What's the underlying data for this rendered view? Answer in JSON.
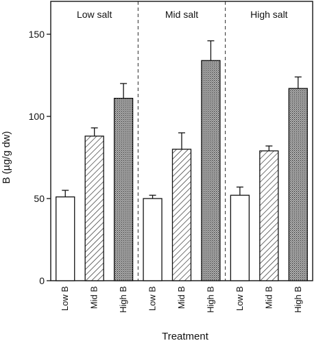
{
  "chart_data": {
    "type": "bar",
    "ylabel": "B (µg/g dw)",
    "xlabel": "Treatment",
    "ylim": [
      0,
      170
    ],
    "yticks": [
      0,
      50,
      100,
      150
    ],
    "grid": false,
    "groups": [
      {
        "name": "Low salt",
        "categories": [
          "Low B",
          "Mid B",
          "High B"
        ],
        "values": [
          51,
          88,
          111
        ],
        "errors": [
          4,
          5,
          9
        ]
      },
      {
        "name": "Mid salt",
        "categories": [
          "Low B",
          "Mid B",
          "High B"
        ],
        "values": [
          50,
          80,
          134
        ],
        "errors": [
          2,
          10,
          12
        ]
      },
      {
        "name": "High salt",
        "categories": [
          "Low B",
          "Mid B",
          "High B"
        ],
        "values": [
          52,
          79,
          117
        ],
        "errors": [
          5,
          3,
          7
        ]
      }
    ],
    "fills": [
      "white",
      "hatched",
      "dotted"
    ],
    "colors": {
      "stroke": "#111111",
      "background": "#ffffff"
    }
  }
}
